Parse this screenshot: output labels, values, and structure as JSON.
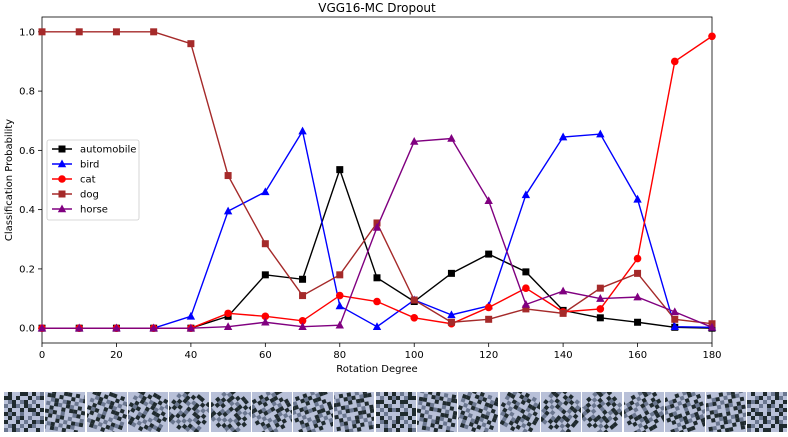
{
  "chart_data": {
    "type": "line",
    "title": "VGG16-MC Dropout",
    "xlabel": "Rotation Degree",
    "ylabel": "Classification Probability",
    "xlim": [
      0,
      180
    ],
    "ylim": [
      -0.05,
      1.05
    ],
    "xticks": [
      0,
      20,
      40,
      60,
      80,
      100,
      120,
      140,
      160,
      180
    ],
    "yticks": [
      0.0,
      0.2,
      0.4,
      0.6,
      0.8,
      1.0
    ],
    "ytick_labels": [
      "0.0",
      "0.2",
      "0.4",
      "0.6",
      "0.8",
      "1.0"
    ],
    "legend_position": "center-left",
    "x": [
      0,
      10,
      20,
      30,
      40,
      50,
      60,
      70,
      80,
      90,
      100,
      110,
      120,
      130,
      140,
      150,
      160,
      170,
      180
    ],
    "series": [
      {
        "name": "automobile",
        "color": "#000000",
        "marker": "square",
        "values": [
          0.0,
          0.0,
          0.0,
          0.0,
          0.0,
          0.04,
          0.18,
          0.165,
          0.535,
          0.17,
          0.09,
          0.185,
          0.25,
          0.19,
          0.06,
          0.035,
          0.02,
          0.003,
          0.0
        ]
      },
      {
        "name": "bird",
        "color": "#0000ff",
        "marker": "triangle",
        "values": [
          0.0,
          0.0,
          0.0,
          0.0,
          0.04,
          0.395,
          0.46,
          0.665,
          0.075,
          0.005,
          0.095,
          0.045,
          0.075,
          0.45,
          0.645,
          0.655,
          0.435,
          0.005,
          0.003
        ]
      },
      {
        "name": "cat",
        "color": "#ff0000",
        "marker": "circle",
        "values": [
          0.0,
          0.0,
          0.0,
          0.0,
          0.0,
          0.05,
          0.04,
          0.025,
          0.11,
          0.09,
          0.035,
          0.015,
          0.07,
          0.135,
          0.055,
          0.065,
          0.235,
          0.9,
          0.985
        ]
      },
      {
        "name": "dog",
        "color": "#a52a2a",
        "marker": "square",
        "values": [
          1.0,
          1.0,
          1.0,
          1.0,
          0.96,
          0.515,
          0.285,
          0.11,
          0.18,
          0.355,
          0.095,
          0.02,
          0.03,
          0.065,
          0.05,
          0.135,
          0.185,
          0.03,
          0.015
        ]
      },
      {
        "name": "horse",
        "color": "#800080",
        "marker": "triangle",
        "values": [
          0.0,
          0.0,
          0.0,
          0.0,
          0.0,
          0.005,
          0.02,
          0.005,
          0.01,
          0.34,
          0.63,
          0.64,
          0.43,
          0.08,
          0.125,
          0.1,
          0.105,
          0.055,
          0.003
        ]
      }
    ]
  },
  "rotated_thumbnails": {
    "count": 19,
    "angles": [
      0,
      10,
      20,
      30,
      40,
      50,
      60,
      70,
      80,
      90,
      100,
      110,
      120,
      130,
      140,
      150,
      160,
      170,
      180
    ],
    "colors": {
      "dark": "#1f2a2e",
      "light": "#b8c0d8",
      "mid": "#6b7790"
    }
  }
}
